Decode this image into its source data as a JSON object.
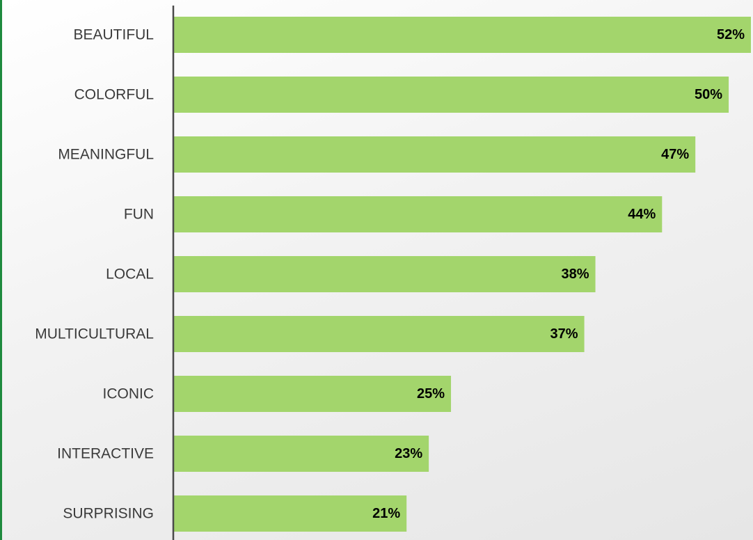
{
  "chart_data": {
    "type": "bar",
    "orientation": "horizontal",
    "categories": [
      "BEAUTIFUL",
      "COLORFUL",
      "MEANINGFUL",
      "FUN",
      "LOCAL",
      "MULTICULTURAL",
      "ICONIC",
      "INTERACTIVE",
      "SURPRISING"
    ],
    "values": [
      52,
      50,
      47,
      44,
      38,
      37,
      25,
      23,
      21
    ],
    "value_labels": [
      "52%",
      "50%",
      "47%",
      "44%",
      "38%",
      "37%",
      "25%",
      "23%",
      "21%"
    ],
    "title": "",
    "xlabel": "",
    "ylabel": "",
    "xlim": [
      0,
      52
    ],
    "grid": false,
    "legend": "none"
  },
  "colors": {
    "bar": "#a3d56c",
    "axis": "#4a4a4a",
    "accent": "#1e8a3e"
  }
}
